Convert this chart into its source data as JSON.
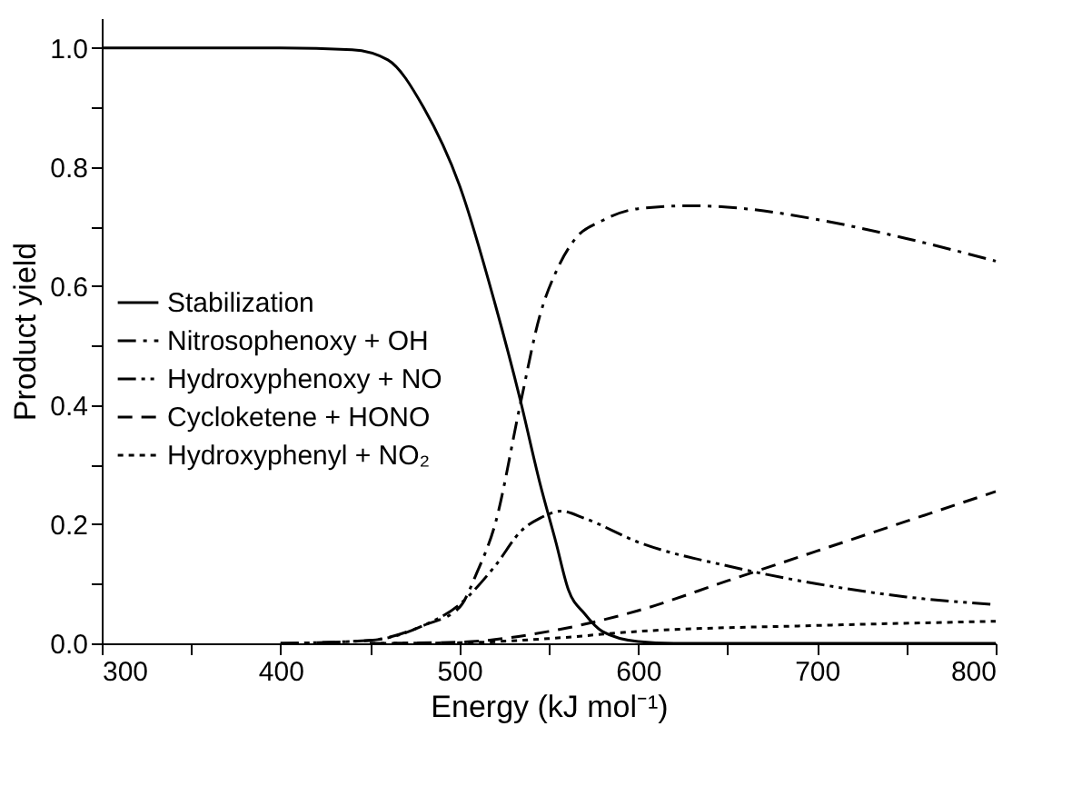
{
  "chart_data": {
    "type": "line",
    "xlabel": "Energy (kJ mol⁻¹)",
    "ylabel": "Product yield",
    "xlim": [
      300,
      800
    ],
    "ylim": [
      0,
      1.05
    ],
    "xticks": [
      300,
      {
        "value": 350,
        "label": null
      },
      400,
      {
        "value": 450,
        "label": null
      },
      500,
      {
        "value": 550,
        "label": null
      },
      600,
      {
        "value": 650,
        "label": null
      },
      700,
      {
        "value": 750,
        "label": null
      },
      800
    ],
    "yticks": [
      {
        "value": 0,
        "label": "0.0"
      },
      {
        "value": 0.1,
        "label": null
      },
      {
        "value": 0.2,
        "label": "0.2"
      },
      {
        "value": 0.3,
        "label": null
      },
      {
        "value": 0.4,
        "label": "0.4"
      },
      {
        "value": 0.5,
        "label": null
      },
      {
        "value": 0.6,
        "label": "0.6"
      },
      {
        "value": 0.7,
        "label": null
      },
      {
        "value": 0.8,
        "label": "0.8"
      },
      {
        "value": 0.9,
        "label": null
      },
      {
        "value": 1,
        "label": "1.0"
      }
    ],
    "grid": false,
    "legend": "left",
    "marker": "none",
    "series": [
      {
        "name": "Stabilization",
        "color": "#000000",
        "line_style": "solid",
        "x": [
          300,
          400,
          440,
          460,
          480,
          500,
          520,
          534,
          545,
          554,
          561,
          570,
          580,
          600,
          620,
          800
        ],
        "values": [
          1,
          1,
          0.997,
          0.98,
          0.9,
          0.77,
          0.57,
          0.41,
          0.27,
          0.17,
          0.09,
          0.05,
          0.02,
          0.003,
          0,
          0
        ]
      },
      {
        "name": "Nitrosophenoxy + OH",
        "color": "#000000",
        "line_style": "dashdot",
        "x": [
          400,
          450,
          480,
          500,
          510,
          520,
          534,
          545,
          555,
          565,
          580,
          600,
          630,
          660,
          700,
          750,
          800
        ],
        "values": [
          0,
          0.005,
          0.03,
          0.06,
          0.12,
          0.2,
          0.4,
          0.55,
          0.63,
          0.68,
          0.71,
          0.73,
          0.735,
          0.73,
          0.712,
          0.68,
          0.642
        ]
      },
      {
        "name": "Hydroxyphenoxy + NO",
        "color": "#000000",
        "line_style": "dashdotdot",
        "x": [
          400,
          450,
          480,
          500,
          520,
          535,
          545,
          557,
          570,
          600,
          650,
          700,
          750,
          800
        ],
        "values": [
          0,
          0.005,
          0.03,
          0.065,
          0.13,
          0.19,
          0.21,
          0.222,
          0.21,
          0.17,
          0.13,
          0.1,
          0.078,
          0.065
        ]
      },
      {
        "name": "Cycloketene + HONO",
        "color": "#000000",
        "line_style": "dashed",
        "x": [
          450,
          500,
          550,
          600,
          650,
          700,
          750,
          800
        ],
        "values": [
          0,
          0.002,
          0.02,
          0.055,
          0.105,
          0.155,
          0.205,
          0.255
        ]
      },
      {
        "name": "Hydroxyphenyl + NO₂",
        "color": "#000000",
        "line_style": "dotted",
        "x": [
          450,
          500,
          550,
          600,
          700,
          800
        ],
        "values": [
          0,
          0.001,
          0.008,
          0.02,
          0.03,
          0.037
        ]
      }
    ]
  }
}
